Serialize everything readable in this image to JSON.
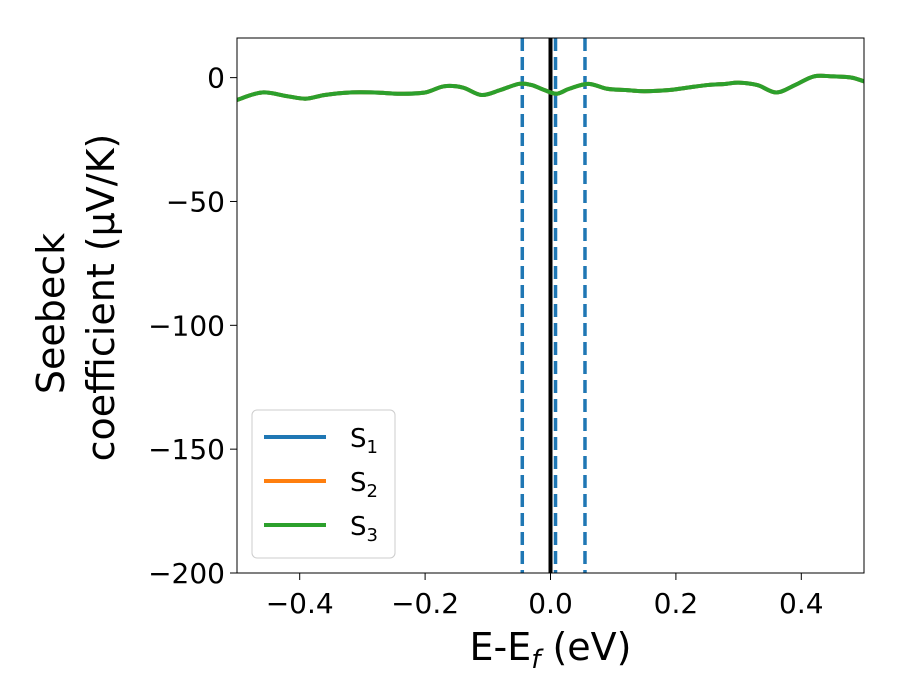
{
  "chart_data": {
    "type": "line",
    "title": "",
    "xlabel": "E-E",
    "xlabel_sub": "f",
    "xlabel_unit": " (eV)",
    "ylabel_line1": "Seebeck",
    "ylabel_line2": "coefficient  (μV/K)",
    "xlim": [
      -0.5,
      0.5
    ],
    "ylim": [
      -200,
      16
    ],
    "xticks": [
      -0.4,
      -0.2,
      0.0,
      0.2,
      0.4
    ],
    "xtick_labels": [
      "−0.4",
      "−0.2",
      "0.0",
      "0.2",
      "0.4"
    ],
    "yticks": [
      0,
      -50,
      -100,
      -150,
      -200
    ],
    "ytick_labels": [
      "0",
      "−50",
      "−100",
      "−150",
      "−200"
    ],
    "legend_position": "lower-left",
    "series": [
      {
        "name": "S",
        "name_sub": "1",
        "color": "#1f77b4",
        "x": [
          -0.5,
          -0.46,
          -0.42,
          -0.39,
          -0.36,
          -0.32,
          -0.28,
          -0.24,
          -0.2,
          -0.17,
          -0.14,
          -0.11,
          -0.08,
          -0.05,
          -0.03,
          -0.01,
          0.01,
          0.03,
          0.06,
          0.09,
          0.12,
          0.15,
          0.19,
          0.22,
          0.25,
          0.28,
          0.3,
          0.33,
          0.36,
          0.39,
          0.42,
          0.45,
          0.48,
          0.5
        ],
        "y": [
          -9,
          -6,
          -7.5,
          -8.5,
          -7,
          -6,
          -6,
          -6.5,
          -6,
          -3.5,
          -4,
          -7,
          -5,
          -2.5,
          -3,
          -5,
          -6.5,
          -4.5,
          -2.5,
          -4.5,
          -5,
          -5.5,
          -5,
          -4,
          -3,
          -2.5,
          -2,
          -3,
          -6,
          -3,
          0.5,
          0.5,
          0,
          -1.5
        ]
      },
      {
        "name": "S",
        "name_sub": "2",
        "color": "#ff7f0e",
        "x": [
          -0.5,
          -0.46,
          -0.42,
          -0.39,
          -0.36,
          -0.32,
          -0.28,
          -0.24,
          -0.2,
          -0.17,
          -0.14,
          -0.11,
          -0.08,
          -0.05,
          -0.03,
          -0.01,
          0.01,
          0.03,
          0.06,
          0.09,
          0.12,
          0.15,
          0.19,
          0.22,
          0.25,
          0.28,
          0.3,
          0.33,
          0.36,
          0.39,
          0.42,
          0.45,
          0.48,
          0.5
        ],
        "y": [
          -9,
          -6,
          -7.5,
          -8.5,
          -7,
          -6,
          -6,
          -6.5,
          -6,
          -3.5,
          -4,
          -7,
          -5,
          -2.5,
          -3,
          -5,
          -6.5,
          -4.5,
          -2.5,
          -4.5,
          -5,
          -5.5,
          -5,
          -4,
          -3,
          -2.5,
          -2,
          -3,
          -6,
          -3,
          0.5,
          0.5,
          0,
          -1.5
        ]
      },
      {
        "name": "S",
        "name_sub": "3",
        "color": "#2ca02c",
        "x": [
          -0.5,
          -0.46,
          -0.42,
          -0.39,
          -0.36,
          -0.32,
          -0.28,
          -0.24,
          -0.2,
          -0.17,
          -0.14,
          -0.11,
          -0.08,
          -0.05,
          -0.03,
          -0.01,
          0.01,
          0.03,
          0.06,
          0.09,
          0.12,
          0.15,
          0.19,
          0.22,
          0.25,
          0.28,
          0.3,
          0.33,
          0.36,
          0.39,
          0.42,
          0.45,
          0.48,
          0.5
        ],
        "y": [
          -9,
          -6,
          -7.5,
          -8.5,
          -7,
          -6,
          -6,
          -6.5,
          -6,
          -3.5,
          -4,
          -7,
          -5,
          -2.5,
          -3,
          -5,
          -6.5,
          -4.5,
          -2.5,
          -4.5,
          -5,
          -5.5,
          -5,
          -4,
          -3,
          -2.5,
          -2,
          -3,
          -6,
          -3,
          0.5,
          0.5,
          0,
          -1.5
        ]
      }
    ],
    "vlines": [
      {
        "x": -0.045,
        "style": "dashed",
        "color": "#1f77b4"
      },
      {
        "x": 0.0,
        "style": "solid",
        "color": "#000000"
      },
      {
        "x": 0.008,
        "style": "dashed",
        "color": "#1f77b4"
      },
      {
        "x": 0.055,
        "style": "dashed",
        "color": "#1f77b4"
      }
    ]
  }
}
